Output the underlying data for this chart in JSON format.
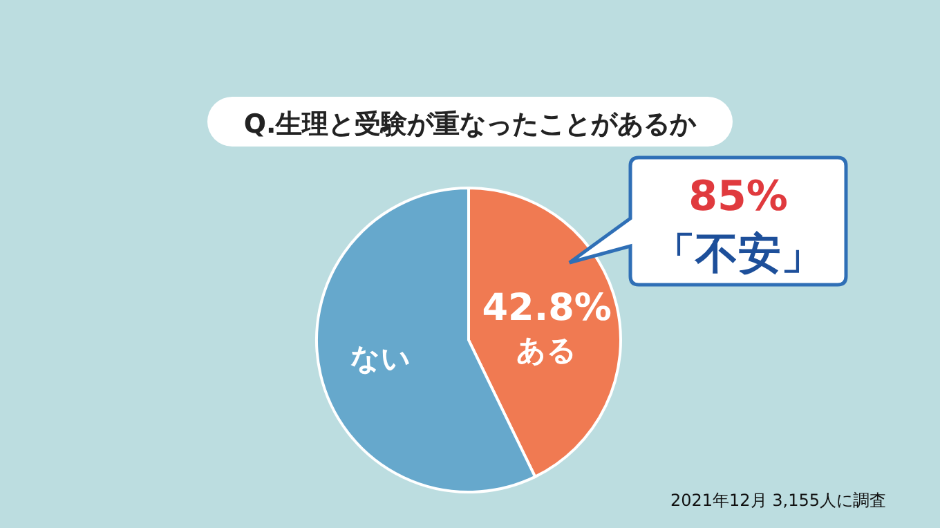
{
  "chart_data": {
    "type": "pie",
    "title": "Q.生理と受験が重なったことがあるか",
    "categories": [
      "ある",
      "ない"
    ],
    "values": [
      42.8,
      57.2
    ],
    "colors": [
      "#f07a52",
      "#66a8cc"
    ],
    "value_labels": [
      "42.8%",
      null
    ],
    "annotations": [
      "85%",
      "「不安」",
      "2021年12月 3,155人に調査"
    ]
  }
}
